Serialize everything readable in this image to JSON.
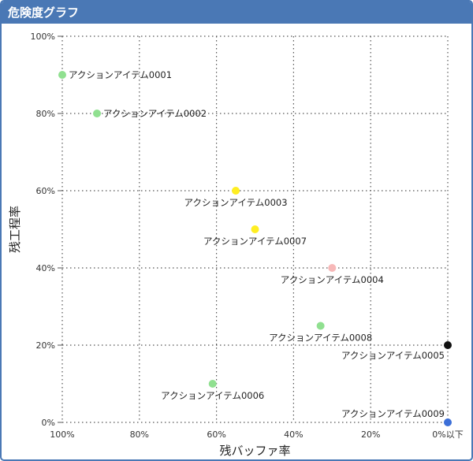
{
  "panel": {
    "title": "危険度グラフ"
  },
  "chart_data": {
    "type": "scatter",
    "title": "",
    "xlabel": "残バッファ率",
    "ylabel": "残工程率",
    "x_reversed": true,
    "xlim": [
      100,
      0
    ],
    "ylim": [
      0,
      100
    ],
    "x_ticks": [
      {
        "value": 100,
        "label": "100%"
      },
      {
        "value": 80,
        "label": "80%"
      },
      {
        "value": 60,
        "label": "60%"
      },
      {
        "value": 40,
        "label": "40%"
      },
      {
        "value": 20,
        "label": "20%"
      },
      {
        "value": 0,
        "label": "0%以下"
      }
    ],
    "y_ticks": [
      {
        "value": 0,
        "label": "0%"
      },
      {
        "value": 20,
        "label": "20%"
      },
      {
        "value": 40,
        "label": "40%"
      },
      {
        "value": 60,
        "label": "60%"
      },
      {
        "value": 80,
        "label": "80%"
      },
      {
        "value": 100,
        "label": "100%"
      }
    ],
    "grid": true,
    "points": [
      {
        "label": "アクションアイテム0001",
        "x": 100,
        "y": 90,
        "color": "#90e090",
        "label_pos": "right"
      },
      {
        "label": "アクションアイテム0002",
        "x": 91,
        "y": 80,
        "color": "#90e090",
        "label_pos": "right"
      },
      {
        "label": "アクションアイテム0003",
        "x": 55,
        "y": 60,
        "color": "#ffee22",
        "label_pos": "below"
      },
      {
        "label": "アクションアイテム0007",
        "x": 50,
        "y": 50,
        "color": "#ffee22",
        "label_pos": "below"
      },
      {
        "label": "アクションアイテム0004",
        "x": 30,
        "y": 40,
        "color": "#f7b8b8",
        "label_pos": "below"
      },
      {
        "label": "アクションアイテム0008",
        "x": 33,
        "y": 25,
        "color": "#90e090",
        "label_pos": "below"
      },
      {
        "label": "アクションアイテム0005",
        "x": 0,
        "y": 20,
        "color": "#111111",
        "label_pos": "below-left"
      },
      {
        "label": "アクションアイテム0006",
        "x": 61,
        "y": 10,
        "color": "#90e090",
        "label_pos": "below"
      },
      {
        "label": "アクションアイテム0009",
        "x": 0,
        "y": 0,
        "color": "#3c6fd8",
        "label_pos": "above-left"
      }
    ]
  }
}
